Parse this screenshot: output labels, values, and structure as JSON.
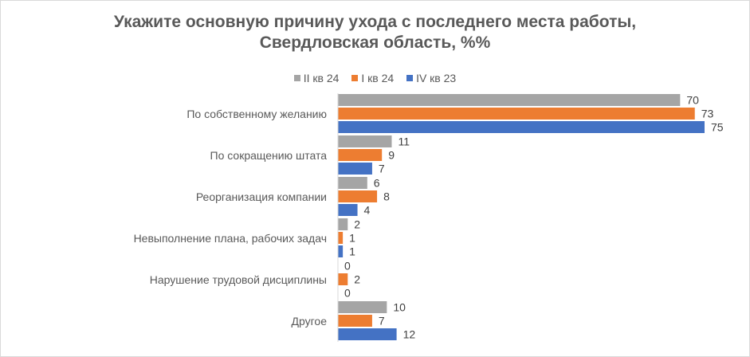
{
  "chart_data": {
    "type": "bar",
    "orientation": "horizontal",
    "title": "Укажите основную причину ухода с последнего места работы, Свердловская область, %%",
    "title_lines": [
      "Укажите основную причину ухода с последнего места работы,",
      "Свердловская область, %%"
    ],
    "categories": [
      "По собственному желанию",
      "По сокращению штата",
      "Реорганизация компании",
      "Невыполнение  плана, рабочих  задач",
      "Нарушение  трудовой дисциплины",
      "Другое"
    ],
    "series": [
      {
        "name": "II кв 24",
        "color": "#A5A5A5",
        "values": [
          70,
          11,
          6,
          2,
          0,
          10
        ]
      },
      {
        "name": "I кв 24",
        "color": "#ED7D31",
        "values": [
          73,
          9,
          8,
          1,
          2,
          7
        ]
      },
      {
        "name": "IV кв 23",
        "color": "#4472C4",
        "values": [
          75,
          7,
          4,
          1,
          0,
          12
        ]
      }
    ],
    "xlim": [
      0,
      80
    ],
    "grid": false,
    "legend": "top",
    "data_labels": true
  }
}
